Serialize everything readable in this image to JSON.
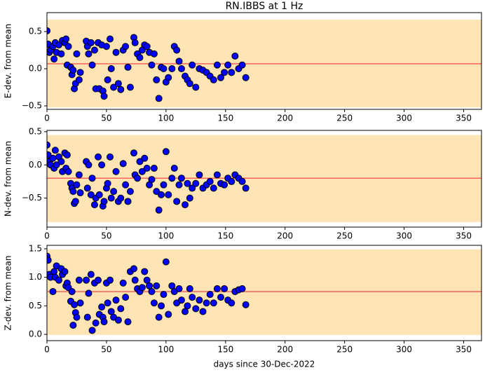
{
  "chart_data": [
    {
      "type": "scatter",
      "title": "RN.IBBS at 1 Hz",
      "y_label": "E-dev. from mean",
      "x": [
        0,
        1,
        2,
        3,
        5,
        6,
        7,
        8,
        10,
        12,
        13,
        15,
        16,
        17,
        18,
        20,
        21,
        22,
        23,
        24,
        25,
        27,
        28,
        33,
        34,
        35,
        37,
        38,
        40,
        41,
        43,
        44,
        46,
        47,
        48,
        50,
        51,
        53,
        54,
        56,
        58,
        60,
        62,
        64,
        66,
        68,
        70,
        73,
        74,
        76,
        78,
        80,
        82,
        84,
        86,
        88,
        90,
        92,
        94,
        96,
        98,
        100,
        102,
        105,
        107,
        109,
        111,
        113,
        116,
        118,
        120,
        122,
        125,
        128,
        131,
        134,
        137,
        140,
        143,
        146,
        149,
        152,
        155,
        158,
        161,
        164,
        167
      ],
      "series": [
        {
          "color": "#0000ff",
          "values": [
            0.51,
            0.33,
            0.22,
            0.25,
            0.3,
            0.13,
            0.35,
            0.22,
            0.32,
            0.2,
            0.38,
            0.35,
            0.4,
            0.05,
            0.3,
            0.02,
            -0.08,
            -0.02,
            -0.27,
            -0.2,
            0.2,
            -0.15,
            -0.05,
            0.37,
            0.3,
            0.2,
            0.35,
            0.05,
            0.25,
            -0.27,
            0.35,
            -0.27,
            0.32,
            -0.3,
            -0.37,
            0.3,
            -0.15,
            0.4,
            0.0,
            -0.25,
            0.22,
            -0.2,
            -0.28,
            0.25,
            0.3,
            0.02,
            -0.25,
            0.42,
            0.35,
            0.2,
            0.15,
            0.25,
            0.32,
            0.3,
            0.22,
            0.05,
            0.2,
            -0.15,
            -0.4,
            0.02,
            0.0,
            -0.18,
            -0.12,
            0.0,
            0.3,
            0.25,
            0.1,
            0.0,
            -0.1,
            -0.15,
            -0.2,
            0.05,
            -0.25,
            0.0,
            -0.02,
            -0.05,
            -0.1,
            -0.15,
            0.05,
            -0.12,
            -0.05,
            0.05,
            -0.05,
            0.17,
            0.0,
            0.05,
            -0.12
          ]
        }
      ],
      "xlim": [
        0,
        365
      ],
      "xticks": [
        0,
        50,
        100,
        150,
        200,
        250,
        300,
        350
      ],
      "ylim": [
        -0.547,
        0.755
      ],
      "yticks": [
        {
          "value": -0.5,
          "label": "−0.5"
        },
        {
          "value": 0,
          "label": "0.0"
        },
        0.5
      ],
      "band": {
        "ymin": -0.52,
        "ymax": 0.66,
        "color": "#ffe4b5"
      },
      "hline": {
        "value": 0.066,
        "color": "#f8625a"
      }
    },
    {
      "type": "scatter",
      "y_label": "N-dev. from mean",
      "x": [
        0,
        1,
        2,
        3,
        5,
        6,
        7,
        8,
        10,
        12,
        13,
        15,
        16,
        17,
        18,
        20,
        21,
        22,
        23,
        24,
        25,
        27,
        28,
        33,
        34,
        35,
        37,
        38,
        40,
        41,
        43,
        44,
        46,
        47,
        48,
        50,
        51,
        53,
        54,
        56,
        58,
        60,
        62,
        64,
        66,
        68,
        70,
        73,
        74,
        76,
        78,
        80,
        82,
        84,
        86,
        88,
        90,
        92,
        94,
        96,
        98,
        100,
        102,
        105,
        107,
        109,
        111,
        113,
        116,
        118,
        120,
        122,
        125,
        128,
        131,
        134,
        137,
        140,
        143,
        146,
        149,
        152,
        155,
        158,
        161,
        164,
        167
      ],
      "series": [
        {
          "color": "#0000ff",
          "values": [
            0.3,
            0.15,
            0.05,
            0.0,
            0.1,
            -0.05,
            0.22,
            0.0,
            0.12,
            0.05,
            -0.1,
            0.18,
            -0.05,
            0.15,
            -0.1,
            -0.28,
            -0.35,
            -0.4,
            -0.58,
            -0.55,
            -0.3,
            -0.15,
            -0.42,
            0.05,
            -0.35,
            0.0,
            -0.45,
            -0.2,
            -0.6,
            -0.5,
            0.12,
            -0.45,
            0.0,
            -0.62,
            -0.55,
            -0.35,
            -0.28,
            0.12,
            -0.5,
            -0.4,
            -0.1,
            -0.55,
            -0.5,
            0.02,
            -0.3,
            -0.55,
            -0.4,
            0.18,
            -0.15,
            -0.2,
            0.05,
            -0.1,
            0.1,
            -0.05,
            -0.3,
            -0.22,
            -0.05,
            -0.4,
            -0.68,
            -0.45,
            -0.3,
            0.2,
            -0.45,
            -0.2,
            -0.05,
            -0.55,
            -0.3,
            -0.2,
            -0.6,
            -0.28,
            -0.5,
            -0.35,
            -0.28,
            -0.15,
            -0.35,
            -0.3,
            -0.25,
            -0.35,
            -0.15,
            -0.28,
            -0.3,
            -0.2,
            -0.25,
            -0.15,
            -0.2,
            -0.25,
            -0.35
          ]
        }
      ],
      "xlim": [
        0,
        365
      ],
      "xticks": [
        0,
        50,
        100,
        150,
        200,
        250,
        300,
        350
      ],
      "ylim": [
        -0.937,
        0.52
      ],
      "yticks": [
        {
          "value": -0.5,
          "label": "−0.5"
        },
        {
          "value": 0,
          "label": "0.0"
        },
        0.5
      ],
      "band": {
        "ymin": -0.86,
        "ymax": 0.45,
        "color": "#ffe4b5"
      },
      "hline": {
        "value": -0.2,
        "color": "#f8625a"
      }
    },
    {
      "type": "scatter",
      "y_label": "Z-dev. from mean",
      "x_label": "days since 30-Dec-2022",
      "x": [
        0,
        1,
        2,
        3,
        5,
        6,
        7,
        8,
        10,
        12,
        13,
        15,
        16,
        17,
        18,
        20,
        21,
        22,
        23,
        24,
        25,
        27,
        28,
        33,
        34,
        35,
        37,
        38,
        40,
        41,
        43,
        44,
        46,
        47,
        48,
        50,
        51,
        53,
        54,
        56,
        58,
        60,
        62,
        64,
        66,
        68,
        70,
        73,
        74,
        76,
        78,
        80,
        82,
        84,
        86,
        88,
        90,
        92,
        94,
        96,
        98,
        100,
        102,
        105,
        107,
        109,
        111,
        113,
        116,
        118,
        120,
        122,
        125,
        128,
        131,
        134,
        137,
        140,
        143,
        146,
        149,
        152,
        155,
        158,
        161,
        164,
        167
      ],
      "series": [
        {
          "color": "#0000ff",
          "values": [
            1.37,
            1.3,
            1.05,
            1.0,
            0.75,
            1.1,
            1.0,
            1.2,
            0.95,
            1.15,
            1.05,
            1.1,
            0.85,
            0.9,
            0.82,
            0.58,
            0.75,
            0.16,
            0.52,
            0.38,
            0.3,
            0.95,
            0.55,
            0.95,
            0.3,
            0.72,
            1.05,
            0.07,
            0.9,
            0.2,
            0.95,
            0.35,
            0.48,
            0.3,
            0.22,
            0.9,
            0.55,
            0.95,
            0.4,
            0.3,
            0.6,
            0.25,
            0.45,
            0.9,
            0.65,
            0.22,
            1.1,
            1.15,
            0.95,
            0.8,
            0.75,
            0.82,
            1.1,
            0.95,
            0.85,
            0.75,
            0.55,
            0.85,
            0.3,
            0.5,
            0.7,
            1.27,
            0.35,
            0.85,
            0.75,
            0.55,
            0.8,
            0.6,
            0.4,
            0.5,
            0.8,
            0.65,
            0.45,
            0.6,
            0.4,
            0.55,
            0.7,
            0.55,
            0.8,
            0.65,
            0.8,
            0.6,
            0.55,
            0.75,
            0.78,
            0.8,
            0.52
          ]
        }
      ],
      "xlim": [
        0,
        365
      ],
      "xticks": [
        0,
        50,
        100,
        150,
        200,
        250,
        300,
        350
      ],
      "ylim": [
        -0.11,
        1.56
      ],
      "yticks": [
        {
          "value": 0,
          "label": "0.0"
        },
        0.5,
        {
          "value": 1,
          "label": "1.0"
        },
        1.5
      ],
      "band": {
        "ymin": -0.01,
        "ymax": 1.49,
        "color": "#ffe4b5"
      },
      "hline": {
        "value": 0.75,
        "color": "#f8625a"
      }
    }
  ]
}
